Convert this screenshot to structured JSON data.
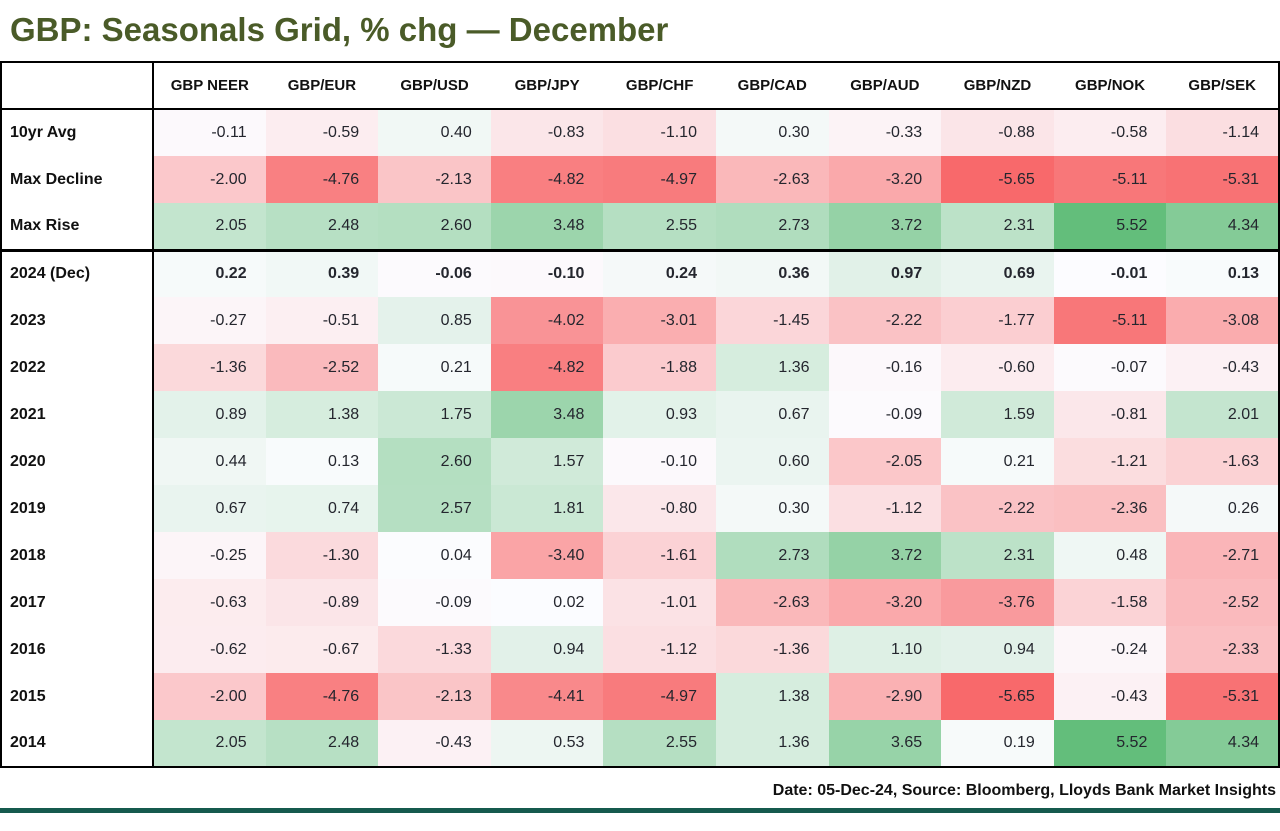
{
  "title": "GBP: Seasonals Grid, % chg — December",
  "footer": {
    "text": "Date: 05-Dec-24,  Source: Bloomberg, Lloyds Bank Market Insights"
  },
  "style": {
    "title_color": "#4a5b28",
    "accent_bar_color": "#155a4e",
    "value_text_color": "#24262e"
  },
  "chart_data": {
    "type": "heatmap",
    "title": "GBP: Seasonals Grid, % chg — December",
    "columns": [
      "GBP NEER",
      "GBP/EUR",
      "GBP/USD",
      "GBP/JPY",
      "GBP/CHF",
      "GBP/CAD",
      "GBP/AUD",
      "GBP/NZD",
      "GBP/NOK",
      "GBP/SEK"
    ],
    "stat_rows": [
      {
        "label": "10yr Avg",
        "values": [
          -0.11,
          -0.59,
          0.4,
          -0.83,
          -1.1,
          0.3,
          -0.33,
          -0.88,
          -0.58,
          -1.14
        ]
      },
      {
        "label": "Max Decline",
        "values": [
          -2.0,
          -4.76,
          -2.13,
          -4.82,
          -4.97,
          -2.63,
          -3.2,
          -5.65,
          -5.11,
          -5.31
        ]
      },
      {
        "label": "Max Rise",
        "values": [
          2.05,
          2.48,
          2.6,
          3.48,
          2.55,
          2.73,
          3.72,
          2.31,
          5.52,
          4.34
        ]
      }
    ],
    "year_rows": [
      {
        "label": "2024 (Dec)",
        "values": [
          0.22,
          0.39,
          -0.06,
          -0.1,
          0.24,
          0.36,
          0.97,
          0.69,
          -0.01,
          0.13
        ]
      },
      {
        "label": "2023",
        "values": [
          -0.27,
          -0.51,
          0.85,
          -4.02,
          -3.01,
          -1.45,
          -2.22,
          -1.77,
          -5.11,
          -3.08
        ]
      },
      {
        "label": "2022",
        "values": [
          -1.36,
          -2.52,
          0.21,
          -4.82,
          -1.88,
          1.36,
          -0.16,
          -0.6,
          -0.07,
          -0.43
        ]
      },
      {
        "label": "2021",
        "values": [
          0.89,
          1.38,
          1.75,
          3.48,
          0.93,
          0.67,
          -0.09,
          1.59,
          -0.81,
          2.01
        ]
      },
      {
        "label": "2020",
        "values": [
          0.44,
          0.13,
          2.6,
          1.57,
          -0.1,
          0.6,
          -2.05,
          0.21,
          -1.21,
          -1.63
        ]
      },
      {
        "label": "2019",
        "values": [
          0.67,
          0.74,
          2.57,
          1.81,
          -0.8,
          0.3,
          -1.12,
          -2.22,
          -2.36,
          0.26
        ]
      },
      {
        "label": "2018",
        "values": [
          -0.25,
          -1.3,
          0.04,
          -3.4,
          -1.61,
          2.73,
          3.72,
          2.31,
          0.48,
          -2.71
        ]
      },
      {
        "label": "2017",
        "values": [
          -0.63,
          -0.89,
          -0.09,
          0.02,
          -1.01,
          -2.63,
          -3.2,
          -3.76,
          -1.58,
          -2.52
        ]
      },
      {
        "label": "2016",
        "values": [
          -0.62,
          -0.67,
          -1.33,
          0.94,
          -1.12,
          -1.36,
          1.1,
          0.94,
          -0.24,
          -2.33
        ]
      },
      {
        "label": "2015",
        "values": [
          -2.0,
          -4.76,
          -2.13,
          -4.41,
          -4.97,
          1.38,
          -2.9,
          -5.65,
          -0.43,
          -5.31
        ]
      },
      {
        "label": "2014",
        "values": [
          2.05,
          2.48,
          -0.43,
          0.53,
          2.55,
          1.36,
          3.65,
          0.19,
          5.52,
          4.34
        ]
      }
    ],
    "color_scale": {
      "min_value": -5.65,
      "mid_value": 0,
      "max_value": 5.52,
      "min_color": "#F8696B",
      "mid_color": "#FCFCFF",
      "max_color": "#63BE7B"
    },
    "value_format": "2dp",
    "legend_position": "none"
  }
}
